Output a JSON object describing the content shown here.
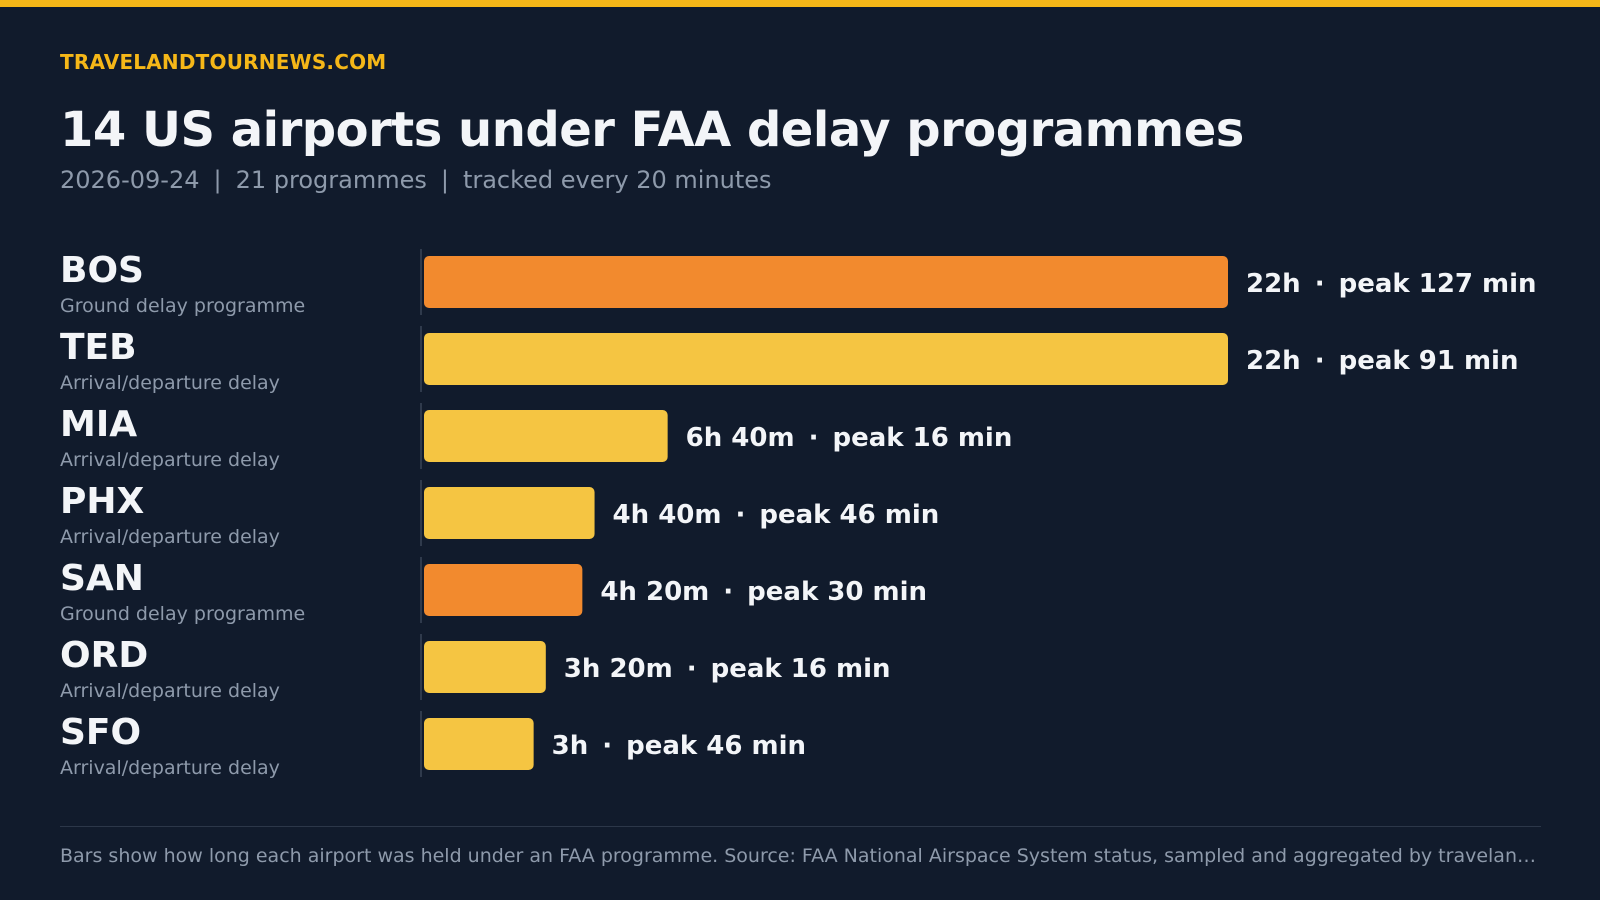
{
  "header": {
    "brand": "TRAVELANDTOURNEWS.COM",
    "title": "14 US airports under FAA delay programmes",
    "subtitle_date": "2026-09-24",
    "subtitle_programmes": "21 programmes",
    "subtitle_tracking": "tracked every 20 minutes",
    "separator": "|"
  },
  "colors": {
    "background": "#111b2c",
    "accent": "#f5b718",
    "ground_delay_programme": "#f28a2e",
    "arrival_departure_delay": "#f5c542"
  },
  "chart_data": {
    "type": "bar",
    "orientation": "horizontal",
    "title": "14 US airports under FAA delay programmes",
    "xlabel": "",
    "ylabel": "",
    "xlim": [
      0,
      22
    ],
    "grid": false,
    "categories": [
      "BOS",
      "TEB",
      "MIA",
      "PHX",
      "SAN",
      "ORD",
      "SFO"
    ],
    "programmes": [
      "Ground delay programme",
      "Arrival/departure delay",
      "Arrival/departure delay",
      "Arrival/departure delay",
      "Ground delay programme",
      "Arrival/departure delay",
      "Arrival/departure delay"
    ],
    "values_hours": [
      22,
      22,
      6.667,
      4.667,
      4.333,
      3.333,
      3
    ],
    "duration_labels": [
      "22h",
      "22h",
      "6h 40m",
      "4h 40m",
      "4h 20m",
      "3h 20m",
      "3h"
    ],
    "peak_labels": [
      "peak 127 min",
      "peak 91 min",
      "peak 16 min",
      "peak 46 min",
      "peak 30 min",
      "peak 16 min",
      "peak 46 min"
    ],
    "label_separator": "·"
  },
  "footer": {
    "note": "Bars show how long each airport was held under an FAA programme. Source: FAA National Airspace System status, sampled and aggregated by travelandtournews.com."
  }
}
